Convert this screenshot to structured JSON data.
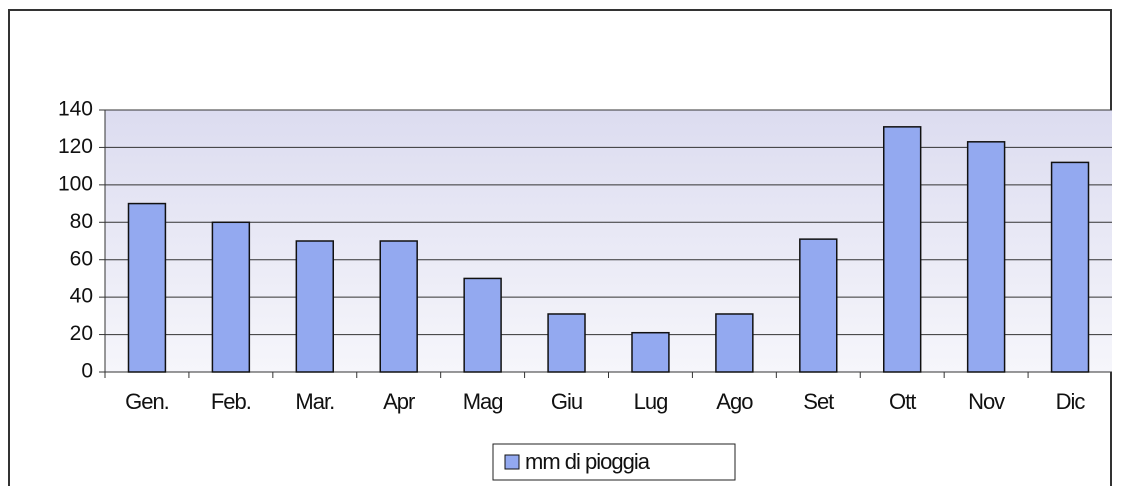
{
  "chart_data": {
    "type": "bar",
    "categories": [
      "Gen.",
      "Feb.",
      "Mar.",
      "Apr",
      "Mag",
      "Giu",
      "Lug",
      "Ago",
      "Set",
      "Ott",
      "Nov",
      "Dic"
    ],
    "series": [
      {
        "name": "mm di pioggia",
        "color": "#93a9f0",
        "values": [
          90,
          80,
          70,
          70,
          50,
          31,
          21,
          31,
          71,
          131,
          123,
          112
        ]
      }
    ],
    "ylim": [
      0,
      140
    ],
    "yticks": [
      0,
      20,
      40,
      60,
      80,
      100,
      120,
      140
    ],
    "grid": true,
    "legend": "bottom"
  }
}
